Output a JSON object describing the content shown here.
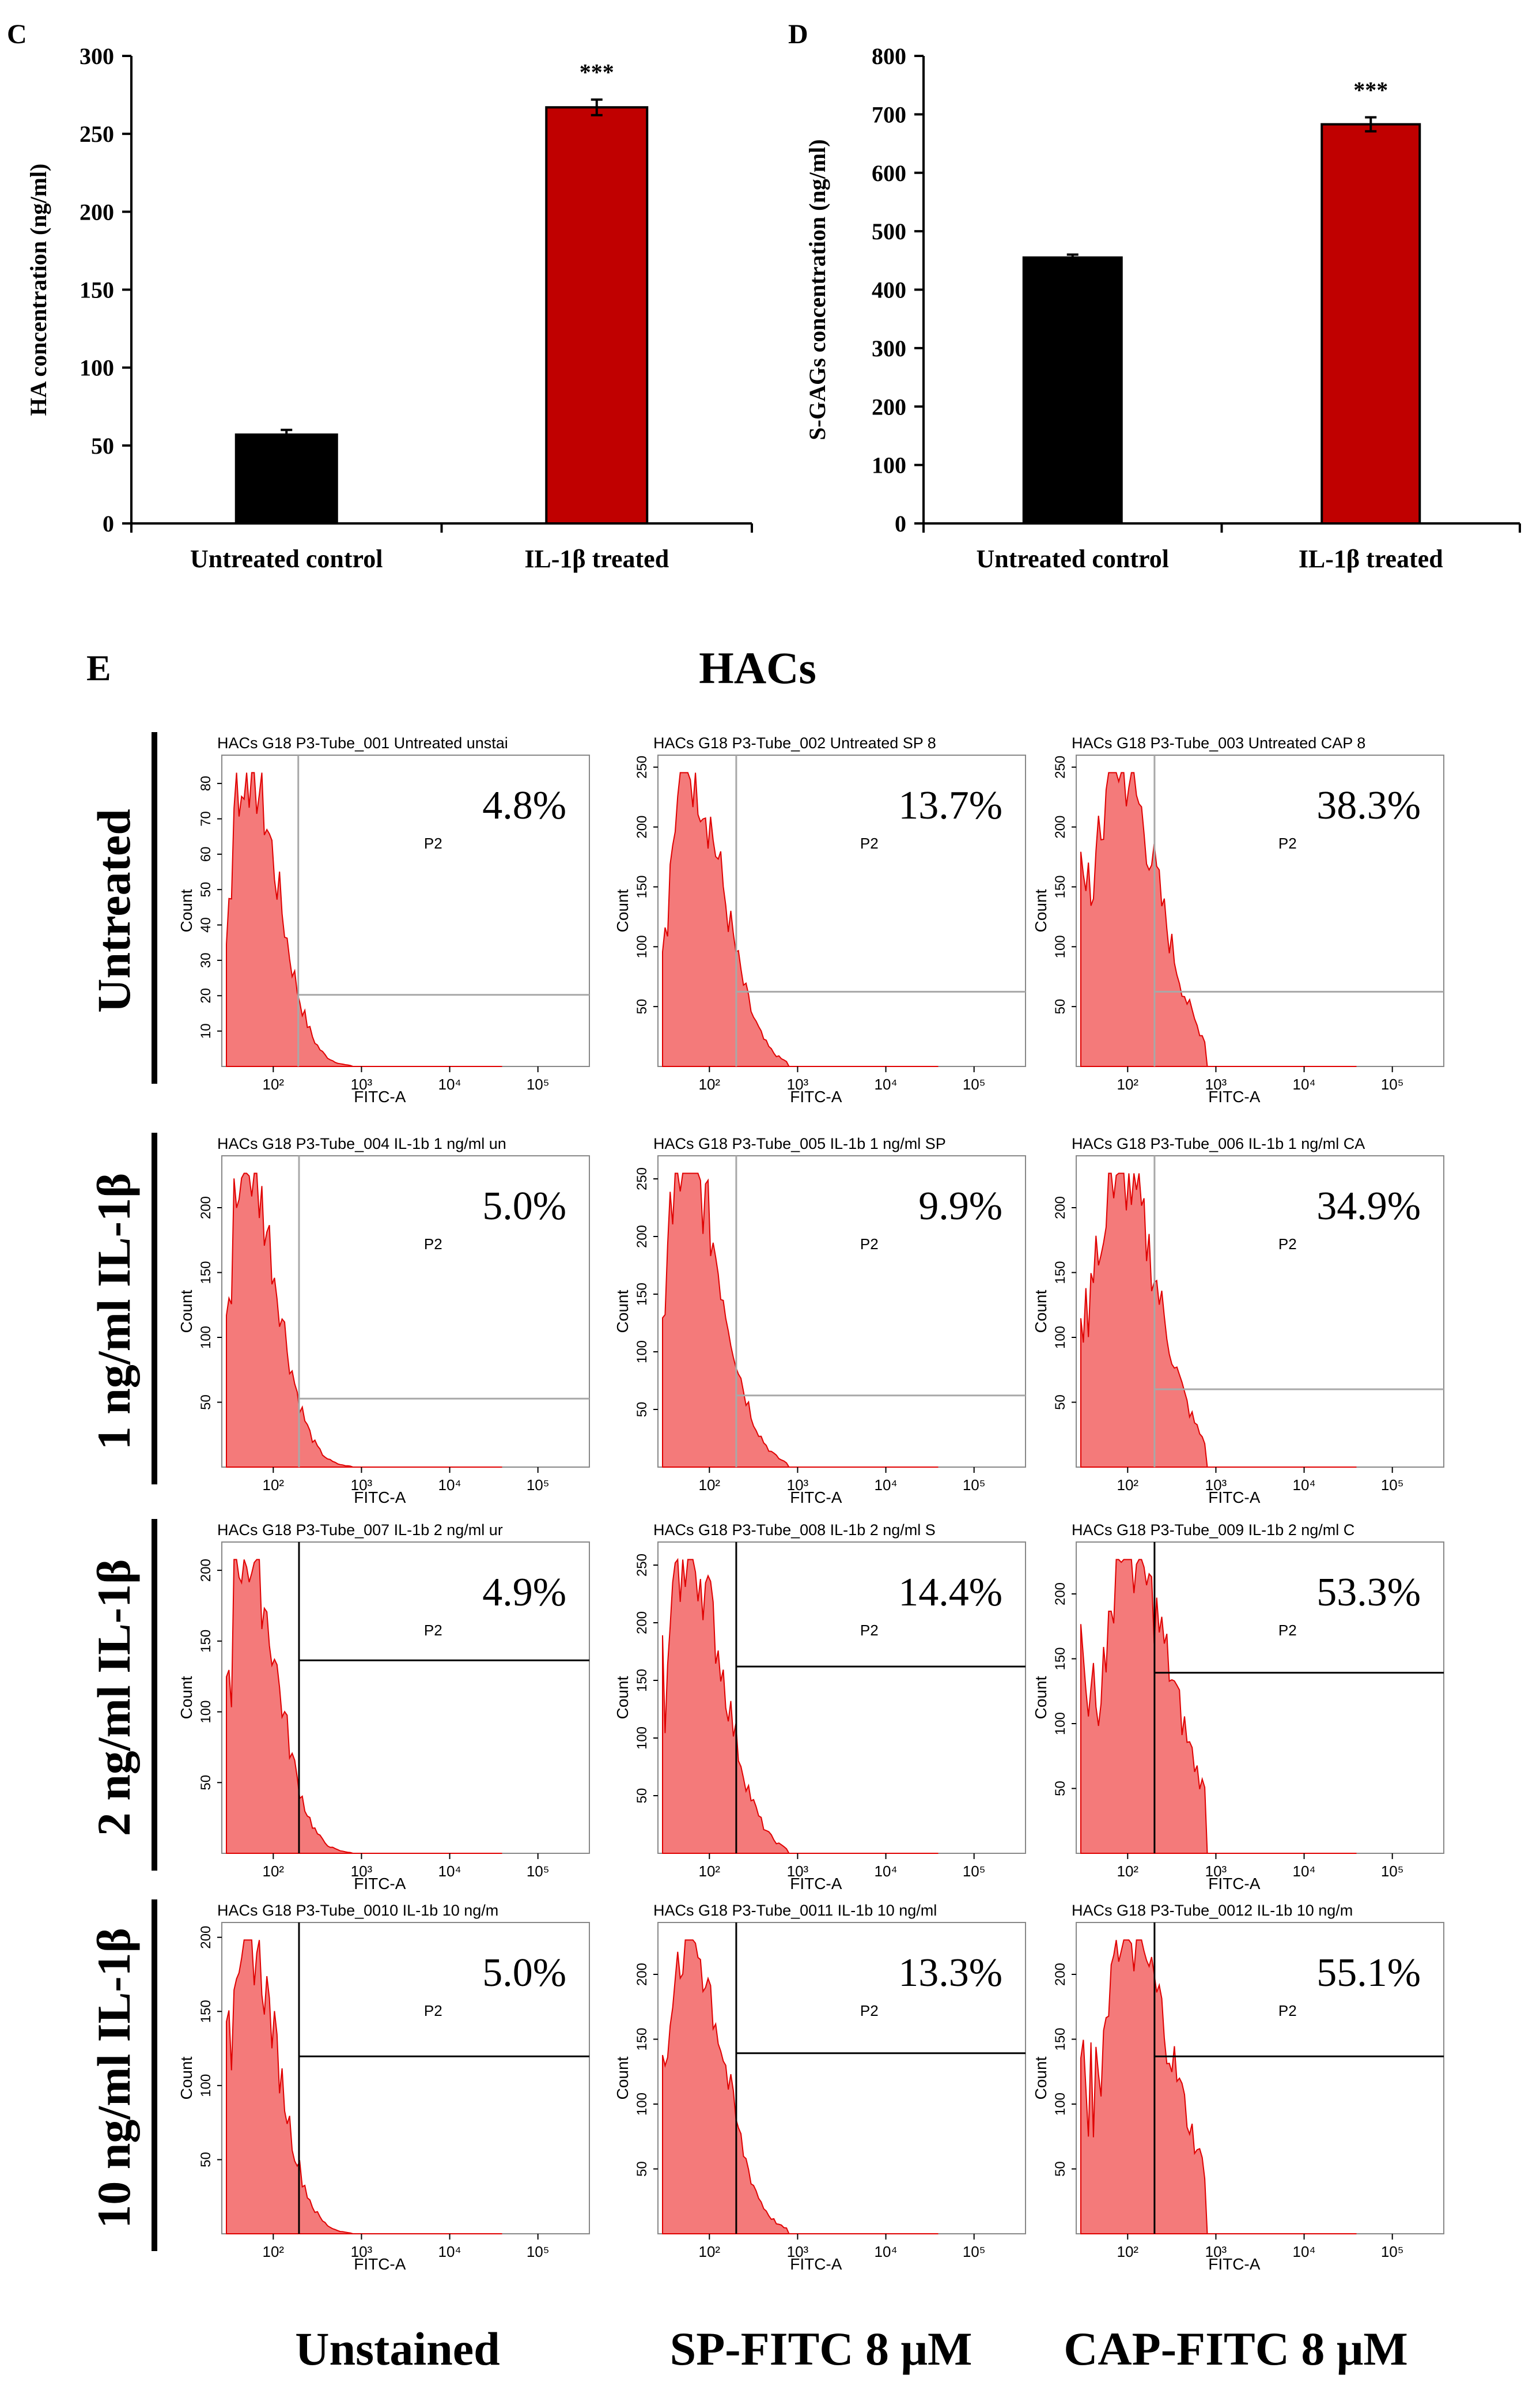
{
  "panels": {
    "C": "C",
    "D": "D",
    "E": "E"
  },
  "chart_data": [
    {
      "id": "C",
      "type": "bar",
      "title": "",
      "ylabel": "HA concentration (ng/ml)",
      "xlabel": "",
      "categories": [
        "Untreated control",
        "IL-1β treated"
      ],
      "values": [
        57,
        267
      ],
      "errors": [
        3,
        5
      ],
      "colors": [
        "#000000",
        "#c00000"
      ],
      "ylim": [
        0,
        300
      ],
      "yticks": [
        0,
        50,
        100,
        150,
        200,
        250,
        300
      ],
      "significance": [
        "",
        "***"
      ]
    },
    {
      "id": "D",
      "type": "bar",
      "title": "",
      "ylabel": "S-GAGs concentration (ng/ml)",
      "xlabel": "",
      "categories": [
        "Untreated control",
        "IL-1β treated"
      ],
      "values": [
        455,
        683
      ],
      "errors": [
        5,
        12
      ],
      "colors": [
        "#000000",
        "#c00000"
      ],
      "ylim": [
        0,
        800
      ],
      "yticks": [
        0,
        100,
        200,
        300,
        400,
        500,
        600,
        700,
        800
      ],
      "significance": [
        "",
        "***"
      ]
    }
  ],
  "flow": {
    "title": "HACs",
    "rows": [
      "Untreated",
      "1 ng/ml IL-1β",
      "2 ng/ml IL-1β",
      "10 ng/ml IL-1β"
    ],
    "cols": [
      "Unstained",
      "SP-FITC 8 μM",
      "CAP-FITC 8 μM"
    ],
    "gate_label": "P2",
    "x_axis_label": "FITC-A",
    "y_axis_label": "Count",
    "x_ticks": [
      "10²",
      "10³",
      "10⁴",
      "10⁵"
    ],
    "accent": "#f05050",
    "plots": [
      [
        {
          "title": "HACs G18 P3-Tube_001 Untreated unstai",
          "percent": "4.8%",
          "yticks": [
            "10",
            "20",
            "30",
            "40",
            "50",
            "60",
            "70",
            "80"
          ],
          "ymax": 88,
          "peak": 0.3,
          "width": 0.8,
          "tail": 0.55,
          "gate": 0.28,
          "hline": 0.23,
          "gateColor": "#a8a8a8"
        },
        {
          "title": "HACs G18 P3-Tube_002  Untreated SP 8",
          "percent": "13.7%",
          "yticks": [
            "50",
            "100",
            "150",
            "200",
            "250"
          ],
          "ymax": 260,
          "peak": 0.42,
          "width": 0.8,
          "tail": 0.68,
          "gate": 0.33,
          "hline": 0.24,
          "gateColor": "#a8a8a8"
        },
        {
          "title": "HACs G18 P3-Tube_003  Untreated CAP 8",
          "percent": "38.3%",
          "yticks": [
            "50",
            "100",
            "150",
            "200",
            "250"
          ],
          "ymax": 260,
          "peak": 0.7,
          "width": 0.75,
          "tail": 0.85,
          "gate": 0.33,
          "hline": 0.24,
          "gateColor": "#a8a8a8"
        }
      ],
      [
        {
          "title": "HACs G18 P3-Tube_004 IL-1b 1 ng/ml un",
          "percent": "5.0%",
          "yticks": [
            "50",
            "100",
            "150",
            "200"
          ],
          "ymax": 240,
          "peak": 0.28,
          "width": 0.8,
          "tail": 0.55,
          "gate": 0.3,
          "hline": 0.22,
          "gateColor": "#a8a8a8"
        },
        {
          "title": "HACs G18 P3-Tube_005 IL-1b 1 ng/ml SP",
          "percent": "9.9%",
          "yticks": [
            "50",
            "100",
            "150",
            "200",
            "250"
          ],
          "ymax": 270,
          "peak": 0.4,
          "width": 0.8,
          "tail": 0.68,
          "gate": 0.33,
          "hline": 0.23,
          "gateColor": "#a8a8a8"
        },
        {
          "title": "HACs G18 P3-Tube_006 IL-1b 1 ng/ml CA",
          "percent": "34.9%",
          "yticks": [
            "50",
            "100",
            "150",
            "200"
          ],
          "ymax": 240,
          "peak": 0.68,
          "width": 0.75,
          "tail": 0.85,
          "gate": 0.33,
          "hline": 0.25,
          "gateColor": "#a8a8a8"
        }
      ],
      [
        {
          "title": "HACs G18 P3-Tube_007 IL-1b 2 ng/ml ur",
          "percent": "4.9%",
          "yticks": [
            "50",
            "100",
            "150",
            "200"
          ],
          "ymax": 220,
          "peak": 0.28,
          "width": 0.8,
          "tail": 0.55,
          "gate": 0.3,
          "hline": 0.62,
          "gateColor": "#000000"
        },
        {
          "title": "HACs G18 P3-Tube_008 IL-1b 2 ng/ml S",
          "percent": "14.4%",
          "yticks": [
            "50",
            "100",
            "150",
            "200",
            "250"
          ],
          "ymax": 270,
          "peak": 0.42,
          "width": 0.8,
          "tail": 0.68,
          "gate": 0.33,
          "hline": 0.6,
          "gateColor": "#000000"
        },
        {
          "title": "HACs G18 P3-Tube_009  IL-1b 2 ng/ml C",
          "percent": "53.3%",
          "yticks": [
            "50",
            "100",
            "150",
            "200"
          ],
          "ymax": 240,
          "peak": 0.9,
          "width": 0.7,
          "tail": 1.0,
          "gate": 0.33,
          "hline": 0.58,
          "gateColor": "#000000"
        }
      ],
      [
        {
          "title": "HACs G18 P3-Tube_0010 IL-1b 10 ng/m",
          "percent": "5.0%",
          "yticks": [
            "50",
            "100",
            "150",
            "200"
          ],
          "ymax": 210,
          "peak": 0.28,
          "width": 0.8,
          "tail": 0.55,
          "gate": 0.3,
          "hline": 0.57,
          "gateColor": "#000000"
        },
        {
          "title": "HACs G18 P3-Tube_0011 IL-1b 10 ng/ml",
          "percent": "13.3%",
          "yticks": [
            "50",
            "100",
            "150",
            "200"
          ],
          "ymax": 240,
          "peak": 0.42,
          "width": 0.8,
          "tail": 0.68,
          "gate": 0.33,
          "hline": 0.58,
          "gateColor": "#000000"
        },
        {
          "title": "HACs G18 P3-Tube_0012 IL-1b 10 ng/m",
          "percent": "55.1%",
          "yticks": [
            "50",
            "100",
            "150",
            "200"
          ],
          "ymax": 240,
          "peak": 0.92,
          "width": 0.7,
          "tail": 1.0,
          "gate": 0.33,
          "hline": 0.57,
          "gateColor": "#000000"
        }
      ]
    ]
  }
}
